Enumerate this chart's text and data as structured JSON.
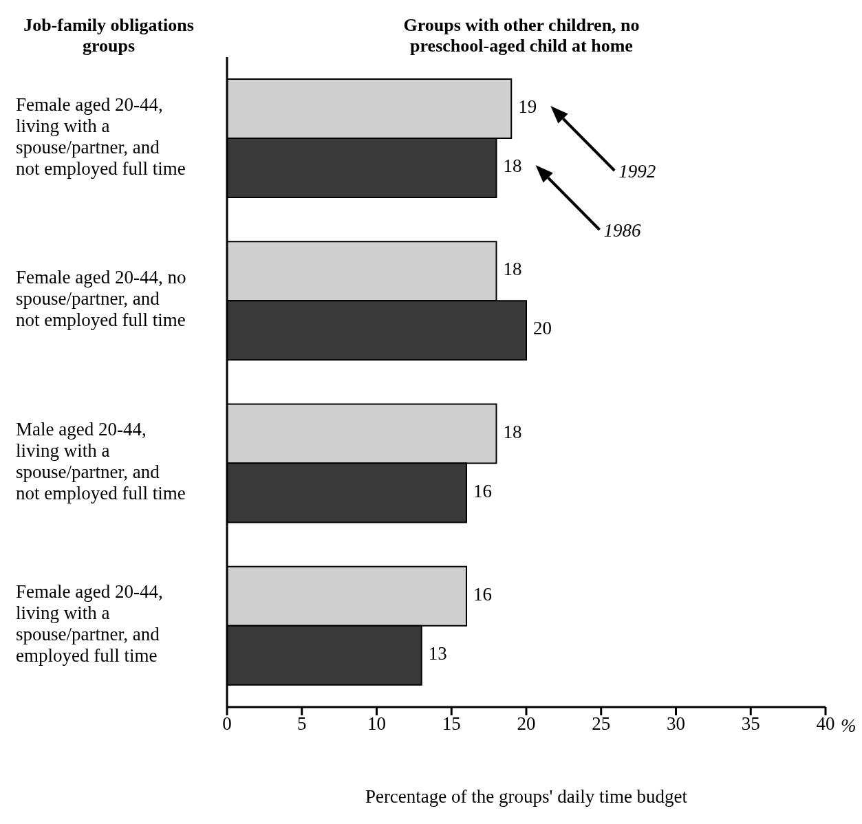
{
  "chart_data": {
    "type": "bar",
    "orientation": "horizontal",
    "title": "Groups with other children, no preschool-aged child at home",
    "ylabel": "Job-family obligations groups",
    "xlabel": "Percentage of the groups' daily  time budget",
    "categories": [
      "Female aged 20-44, living with a spouse/partner, and not employed full time",
      "Female aged 20-44, no spouse/partner, and not employed full time",
      "Male aged 20-44, living with a spouse/partner, and not employed full time",
      "Female aged 20-44, living with a spouse/partner, and employed full time"
    ],
    "series": [
      {
        "name": "1992",
        "color": "#cfcfcf",
        "values": [
          19,
          18,
          18,
          16
        ]
      },
      {
        "name": "1986",
        "color": "#3a3a3a",
        "values": [
          18,
          20,
          16,
          13
        ]
      }
    ],
    "xlim": [
      0,
      40
    ],
    "xticks": [
      0,
      5,
      10,
      15,
      20,
      25,
      30,
      35,
      40
    ],
    "annotations": [
      "%"
    ],
    "data_labels": true,
    "grid": false
  }
}
